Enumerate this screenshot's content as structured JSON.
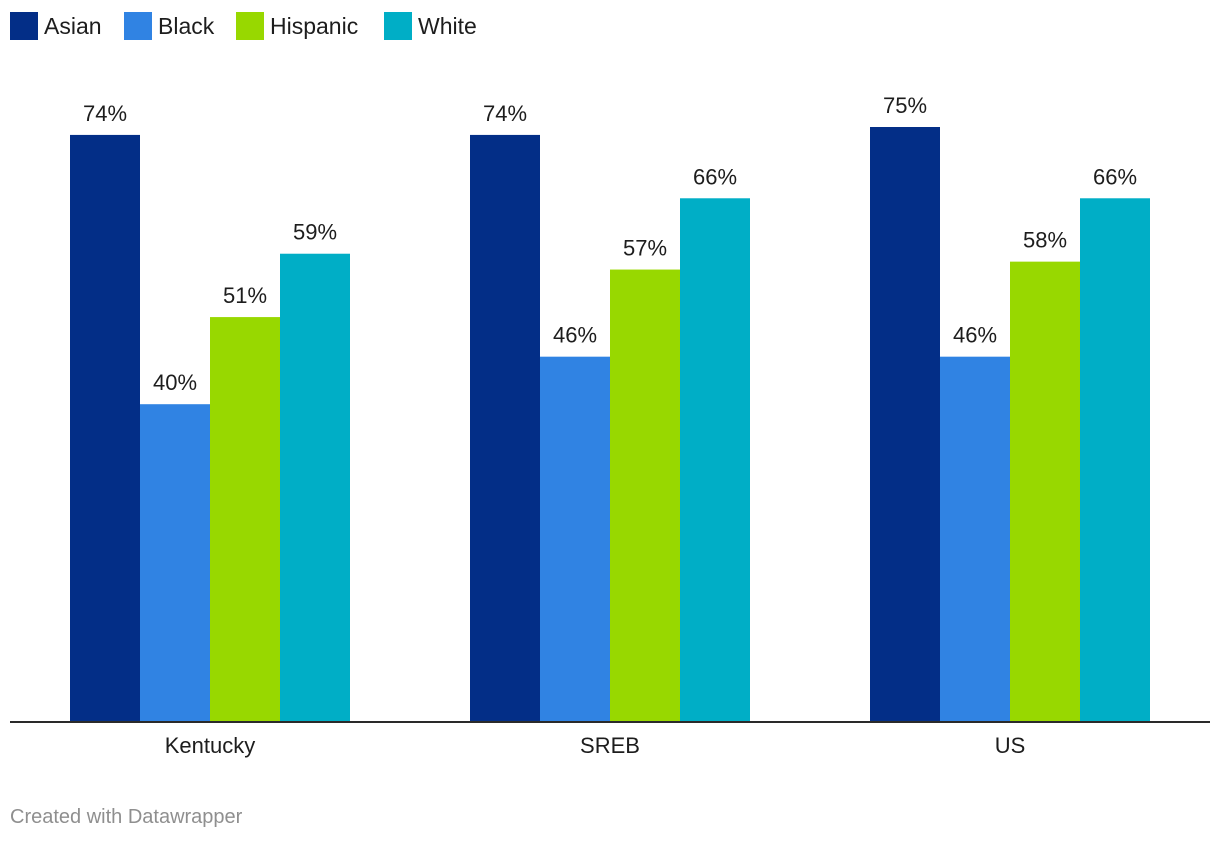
{
  "chart_data": {
    "type": "bar",
    "title": "",
    "xlabel": "",
    "ylabel": "",
    "ylim": [
      0,
      100
    ],
    "grid": false,
    "legend_position": "top-left",
    "categories": [
      "Kentucky",
      "SREB",
      "US"
    ],
    "series": [
      {
        "name": "Asian",
        "color": "#032e87",
        "values": [
          74,
          74,
          75
        ],
        "labels": [
          "74%",
          "74%",
          "75%"
        ]
      },
      {
        "name": "Black",
        "color": "#3083e3",
        "values": [
          40,
          46,
          46
        ],
        "labels": [
          "40%",
          "46%",
          "46%"
        ]
      },
      {
        "name": "Hispanic",
        "color": "#98d800",
        "values": [
          51,
          57,
          58
        ],
        "labels": [
          "51%",
          "57%",
          "58%"
        ]
      },
      {
        "name": "White",
        "color": "#00aec6",
        "values": [
          59,
          66,
          66
        ],
        "labels": [
          "59%",
          "66%",
          "66%"
        ]
      }
    ]
  },
  "footer": {
    "credit": "Created with Datawrapper"
  }
}
